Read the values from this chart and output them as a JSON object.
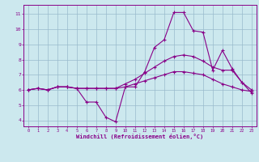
{
  "xlabel": "Windchill (Refroidissement éolien,°C)",
  "bg_color": "#cce8ee",
  "line_color": "#880088",
  "grid_color": "#99bbcc",
  "ylim": [
    3.6,
    11.6
  ],
  "xlim": [
    -0.5,
    23.5
  ],
  "yticks": [
    4,
    5,
    6,
    7,
    8,
    9,
    10,
    11
  ],
  "xticks": [
    0,
    1,
    2,
    3,
    4,
    5,
    6,
    7,
    8,
    9,
    10,
    11,
    12,
    13,
    14,
    15,
    16,
    17,
    18,
    19,
    20,
    21,
    22,
    23
  ],
  "line1_x": [
    0,
    1,
    2,
    3,
    4,
    5,
    6,
    7,
    8,
    9,
    10,
    11,
    12,
    13,
    14,
    15,
    16,
    17,
    18,
    19,
    20,
    21,
    22,
    23
  ],
  "line1_y": [
    6.0,
    6.1,
    6.0,
    6.2,
    6.2,
    6.1,
    5.2,
    5.2,
    4.2,
    3.9,
    6.2,
    6.2,
    7.2,
    8.8,
    9.3,
    11.1,
    11.1,
    9.9,
    9.8,
    7.3,
    8.6,
    7.4,
    6.5,
    5.8
  ],
  "line2_x": [
    0,
    1,
    2,
    3,
    4,
    5,
    6,
    7,
    8,
    9,
    10,
    11,
    12,
    13,
    14,
    15,
    16,
    17,
    18,
    19,
    20,
    21,
    22,
    23
  ],
  "line2_y": [
    6.0,
    6.1,
    6.0,
    6.2,
    6.2,
    6.1,
    6.1,
    6.1,
    6.1,
    6.1,
    6.4,
    6.7,
    7.1,
    7.5,
    7.9,
    8.2,
    8.3,
    8.2,
    7.9,
    7.5,
    7.3,
    7.3,
    6.5,
    6.0
  ],
  "line3_x": [
    0,
    1,
    2,
    3,
    4,
    5,
    6,
    7,
    8,
    9,
    10,
    11,
    12,
    13,
    14,
    15,
    16,
    17,
    18,
    19,
    20,
    21,
    22,
    23
  ],
  "line3_y": [
    6.0,
    6.1,
    6.0,
    6.2,
    6.2,
    6.1,
    6.1,
    6.1,
    6.1,
    6.1,
    6.2,
    6.4,
    6.6,
    6.8,
    7.0,
    7.2,
    7.2,
    7.1,
    7.0,
    6.7,
    6.4,
    6.2,
    6.0,
    5.9
  ],
  "marker": "+",
  "markersize": 3,
  "linewidth": 0.8
}
